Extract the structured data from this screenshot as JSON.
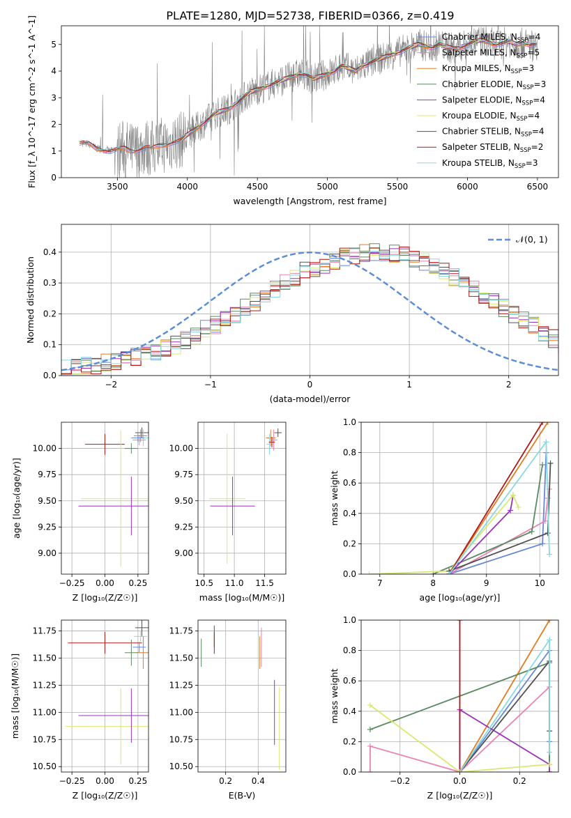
{
  "page_title": "PLATE=1280, MJD=52738, FIBERID=0366, z=0.419",
  "colors": {
    "chabrier_miles": "#6688d8",
    "salpeter_miles": "#e882b4",
    "kroupa_miles": "#e07c20",
    "chabrier_elodie": "#5a8a60",
    "salpeter_elodie": "#9933bb",
    "kroupa_elodie": "#d8e870",
    "chabrier_stelib": "#505050",
    "salpeter_stelib": "#b01818",
    "kroupa_stelib": "#88d8e0",
    "data": "#808080",
    "normal": "#5b8ed6"
  },
  "chart_data": [
    {
      "type": "line",
      "id": "spectrum",
      "xlabel": "wavelength [Angstrom, rest frame]",
      "ylabel": "Flux [f_λ 10^-17 erg cm^-2 s^-1 A^-1]",
      "xlim": [
        3100,
        6650
      ],
      "ylim": [
        0,
        5.7
      ],
      "xticks": [
        "3500",
        "4000",
        "4500",
        "5000",
        "5500",
        "6000",
        "6500"
      ],
      "yticks": [
        "0",
        "1",
        "2",
        "3",
        "4",
        "5"
      ],
      "model_x": [
        3250,
        3300,
        3350,
        3400,
        3450,
        3500,
        3550,
        3600,
        3650,
        3700,
        3750,
        3800,
        3850,
        3900,
        3950,
        4000,
        4050,
        4100,
        4150,
        4200,
        4250,
        4300,
        4350,
        4400,
        4450,
        4500,
        4550,
        4600,
        4650,
        4700,
        4750,
        4800,
        4850,
        4900,
        4950,
        5000,
        5050,
        5100,
        5150,
        5200,
        5250,
        5300,
        5350,
        5400,
        5450,
        5500,
        5550,
        5600,
        5650,
        5700,
        5750,
        5800,
        5850,
        5900,
        5950,
        6000,
        6050,
        6100,
        6150,
        6200,
        6250,
        6300,
        6350,
        6400,
        6450,
        6500
      ],
      "model_y": [
        1.3,
        1.25,
        1.1,
        1.05,
        1.0,
        1.05,
        1.1,
        1.0,
        1.05,
        1.15,
        1.1,
        1.2,
        1.25,
        1.35,
        1.4,
        1.6,
        1.8,
        2.0,
        2.2,
        2.4,
        2.5,
        2.6,
        2.8,
        3.0,
        3.2,
        3.3,
        3.4,
        3.5,
        3.6,
        3.7,
        3.8,
        3.9,
        3.85,
        3.7,
        3.8,
        3.9,
        4.0,
        4.2,
        4.1,
        4.0,
        4.2,
        4.3,
        4.4,
        4.5,
        4.6,
        4.7,
        4.8,
        4.9,
        5.0,
        4.95,
        4.9,
        5.0,
        4.9,
        4.85,
        4.9,
        5.0,
        5.1,
        5.15,
        5.1,
        5.0,
        5.05,
        5.1,
        5.0,
        5.05,
        5.0,
        5.0
      ],
      "legend_position": "upper right",
      "legend": [
        {
          "label": "Chabrier MILES, N",
          "sub": "SSP",
          "value": "=4",
          "color_key": "chabrier_miles"
        },
        {
          "label": "Salpeter MILES, N",
          "sub": "SSP",
          "value": "=5",
          "color_key": "salpeter_miles"
        },
        {
          "label": "Kroupa MILES, N",
          "sub": "SSP",
          "value": "=3",
          "color_key": "kroupa_miles"
        },
        {
          "label": "Chabrier ELODIE, N",
          "sub": "SSP",
          "value": "=3",
          "color_key": "chabrier_elodie"
        },
        {
          "label": "Salpeter ELODIE, N",
          "sub": "SSP",
          "value": "=4",
          "color_key": "salpeter_elodie"
        },
        {
          "label": "Kroupa ELODIE, N",
          "sub": "SSP",
          "value": "=4",
          "color_key": "kroupa_elodie"
        },
        {
          "label": "Chabrier STELIB, N",
          "sub": "SSP",
          "value": "=4",
          "color_key": "chabrier_stelib"
        },
        {
          "label": "Salpeter STELIB, N",
          "sub": "SSP",
          "value": "=2",
          "color_key": "salpeter_stelib"
        },
        {
          "label": "Kroupa STELIB, N",
          "sub": "SSP",
          "value": "=3",
          "color_key": "kroupa_stelib"
        }
      ]
    },
    {
      "type": "step",
      "id": "residuals",
      "xlabel": "(data-model)/error",
      "ylabel": "Normed distribution",
      "xlim": [
        -2.5,
        2.5
      ],
      "ylim": [
        0,
        0.49
      ],
      "xticks": [
        "−2",
        "−1",
        "0",
        "1",
        "2"
      ],
      "yticks": [
        "0.0",
        "0.1",
        "0.2",
        "0.3",
        "0.4"
      ],
      "legend_label": "𝒩(0, 1)",
      "legend_position": "upper right",
      "bin_width": 0.1,
      "bin_start": -2.5,
      "hist_base": [
        0.02,
        0.025,
        0.03,
        0.035,
        0.04,
        0.045,
        0.05,
        0.06,
        0.07,
        0.08,
        0.09,
        0.1,
        0.115,
        0.13,
        0.15,
        0.165,
        0.18,
        0.2,
        0.22,
        0.24,
        0.26,
        0.28,
        0.3,
        0.32,
        0.34,
        0.35,
        0.36,
        0.375,
        0.385,
        0.39,
        0.395,
        0.4,
        0.4,
        0.395,
        0.39,
        0.38,
        0.37,
        0.355,
        0.34,
        0.32,
        0.3,
        0.28,
        0.26,
        0.24,
        0.22,
        0.2,
        0.18,
        0.16,
        0.14,
        0.12,
        0.1,
        0.085,
        0.07,
        0.06,
        0.05,
        0.045,
        0.04,
        0.035,
        0.03,
        0.025,
        0.02,
        0.02,
        0.02,
        0.02,
        0.02,
        0.02,
        0.02,
        0.02,
        0.02,
        0.02,
        0.02,
        0.02,
        0.02,
        0.02,
        0.02,
        0.02,
        0.02,
        0.02,
        0.02,
        0.02,
        0.02
      ]
    },
    {
      "type": "errorbar",
      "id": "age-vs-Z",
      "xlabel": "Z [log₁₀(Z/Z☉)]",
      "ylabel": "age  [log₁₀(age/yr)]",
      "xlim": [
        -0.33,
        0.33
      ],
      "ylim": [
        8.8,
        10.25
      ],
      "xticks": [
        "−0.25",
        "0.00",
        "0.25"
      ],
      "yticks": [
        "9.00",
        "9.25",
        "9.50",
        "9.75",
        "10.00"
      ],
      "points": [
        {
          "x": 0.0,
          "y": 10.04,
          "xerr": 0.15,
          "yerr": 0.1,
          "color_key": "salpeter_stelib"
        },
        {
          "x": 0.28,
          "y": 10.15,
          "xerr": 0.05,
          "yerr": 0.05,
          "color_key": "chabrier_stelib"
        },
        {
          "x": 0.29,
          "y": 10.1,
          "xerr": 0.05,
          "yerr": 0.08,
          "color_key": "kroupa_stelib"
        },
        {
          "x": 0.27,
          "y": 10.12,
          "xerr": 0.05,
          "yerr": 0.06,
          "color_key": "kroupa_miles"
        },
        {
          "x": 0.26,
          "y": 10.08,
          "xerr": 0.05,
          "yerr": 0.05,
          "color_key": "salpeter_miles"
        },
        {
          "x": 0.25,
          "y": 10.1,
          "xerr": 0.05,
          "yerr": 0.04,
          "color_key": "chabrier_miles"
        },
        {
          "x": 0.2,
          "y": 10.0,
          "xerr": 0.05,
          "yerr": 0.05,
          "color_key": "chabrier_elodie"
        },
        {
          "x": 0.12,
          "y": 9.52,
          "xerr": 0.3,
          "yerr": 0.65,
          "color_key": "kroupa_elodie"
        },
        {
          "x": 0.2,
          "y": 9.45,
          "xerr": 0.4,
          "yerr": 0.28,
          "color_key": "salpeter_elodie"
        }
      ]
    },
    {
      "type": "errorbar",
      "id": "age-vs-mass",
      "xlabel": "mass [log₁₀(M/M☉)]",
      "xlim": [
        10.4,
        11.85
      ],
      "ylim": [
        8.8,
        10.25
      ],
      "xticks": [
        "10.5",
        "11.0",
        "11.5"
      ],
      "yticks": [
        "9.00",
        "9.25",
        "9.50",
        "9.75",
        "10.00"
      ],
      "points": [
        {
          "x": 11.72,
          "y": 10.15,
          "xerr": 0.06,
          "yerr": 0.04,
          "color_key": "chabrier_stelib"
        },
        {
          "x": 11.6,
          "y": 10.1,
          "xerr": 0.08,
          "yerr": 0.08,
          "color_key": "kroupa_miles"
        },
        {
          "x": 11.65,
          "y": 10.08,
          "xerr": 0.06,
          "yerr": 0.1,
          "color_key": "salpeter_miles"
        },
        {
          "x": 11.58,
          "y": 10.04,
          "xerr": 0.05,
          "yerr": 0.1,
          "color_key": "kroupa_stelib"
        },
        {
          "x": 11.62,
          "y": 10.06,
          "xerr": 0.05,
          "yerr": 0.05,
          "color_key": "salpeter_stelib"
        },
        {
          "x": 10.88,
          "y": 9.52,
          "xerr": 0.3,
          "yerr": 0.62,
          "color_key": "kroupa_elodie"
        },
        {
          "x": 10.97,
          "y": 9.45,
          "xerr": 0.37,
          "yerr": 0.28,
          "color_key": "salpeter_elodie"
        }
      ]
    },
    {
      "type": "line",
      "id": "massweight-vs-age",
      "xlabel": "age  [log₁₀(age/yr)]",
      "ylabel": "mass weight",
      "xlim": [
        6.65,
        10.35
      ],
      "ylim": [
        0,
        1
      ],
      "xticks": [
        "7",
        "8",
        "9",
        "10"
      ],
      "yticks": [
        "0.0",
        "0.2",
        "0.4",
        "0.6",
        "0.8",
        "1.0"
      ],
      "series": [
        {
          "color_key": "chabrier_miles",
          "x": [
            8.3,
            10.05,
            10.12
          ],
          "y": [
            0.0,
            0.2,
            0.8
          ]
        },
        {
          "color_key": "salpeter_miles",
          "x": [
            8.3,
            10.1,
            10.15,
            10.18
          ],
          "y": [
            0.0,
            0.35,
            0.5,
            0.56
          ]
        },
        {
          "color_key": "kroupa_miles",
          "x": [
            8.3,
            10.15
          ],
          "y": [
            0.0,
            1.0
          ]
        },
        {
          "color_key": "chabrier_elodie",
          "x": [
            8.0,
            9.85,
            10.05
          ],
          "y": [
            0.0,
            0.28,
            0.72
          ]
        },
        {
          "color_key": "salpeter_elodie",
          "x": [
            8.3,
            9.45,
            9.5
          ],
          "y": [
            0.0,
            0.42,
            0.52
          ]
        },
        {
          "color_key": "kroupa_elodie",
          "x": [
            6.8,
            8.3,
            9.5,
            9.6
          ],
          "y": [
            0.0,
            0.02,
            0.52,
            0.44
          ]
        },
        {
          "color_key": "chabrier_stelib",
          "x": [
            8.3,
            10.15,
            10.2
          ],
          "y": [
            0.02,
            0.27,
            0.73
          ]
        },
        {
          "color_key": "salpeter_stelib",
          "x": [
            8.3,
            10.05
          ],
          "y": [
            0.0,
            1.0
          ]
        },
        {
          "color_key": "kroupa_stelib",
          "x": [
            8.3,
            10.12,
            10.18
          ],
          "y": [
            0.0,
            0.87,
            0.13
          ]
        }
      ]
    },
    {
      "type": "errorbar",
      "id": "mass-vs-Z",
      "xlabel": "Z [log₁₀(Z/Z☉)]",
      "ylabel": "mass [log₁₀(M/M☉)]",
      "xlim": [
        -0.33,
        0.33
      ],
      "ylim": [
        10.45,
        11.85
      ],
      "xticks": [
        "−0.25",
        "0.00",
        "0.25"
      ],
      "yticks": [
        "10.50",
        "10.75",
        "11.00",
        "11.25",
        "11.50",
        "11.75"
      ],
      "points": [
        {
          "x": 0.0,
          "y": 11.64,
          "xerr": 0.28,
          "yerr": 0.1,
          "color_key": "salpeter_stelib"
        },
        {
          "x": 0.28,
          "y": 11.78,
          "xerr": 0.05,
          "yerr": 0.08,
          "color_key": "chabrier_stelib"
        },
        {
          "x": 0.27,
          "y": 11.7,
          "xerr": 0.05,
          "yerr": 0.05,
          "color_key": "kroupa_stelib"
        },
        {
          "x": 0.29,
          "y": 11.55,
          "xerr": 0.05,
          "yerr": 0.15,
          "color_key": "kroupa_miles"
        },
        {
          "x": 0.26,
          "y": 11.6,
          "xerr": 0.05,
          "yerr": 0.05,
          "color_key": "chabrier_miles"
        },
        {
          "x": 0.2,
          "y": 11.55,
          "xerr": 0.05,
          "yerr": 0.12,
          "color_key": "chabrier_elodie"
        },
        {
          "x": 0.12,
          "y": 10.87,
          "xerr": 0.42,
          "yerr": 0.35,
          "color_key": "kroupa_elodie"
        },
        {
          "x": 0.2,
          "y": 10.97,
          "xerr": 0.4,
          "yerr": 0.25,
          "color_key": "salpeter_elodie"
        }
      ]
    },
    {
      "type": "errorbar",
      "id": "mass-vs-EBV",
      "xlabel": "E(B-V)",
      "xlim": [
        0.03,
        0.57
      ],
      "ylim": [
        10.45,
        11.85
      ],
      "xticks": [
        "0.2",
        "0.4"
      ],
      "yticks": [
        "10.50",
        "10.75",
        "11.00",
        "11.25",
        "11.50",
        "11.75"
      ],
      "points": [
        {
          "x": 0.05,
          "y": 11.55,
          "xerr": 0.0,
          "yerr": 0.13,
          "color_key": "chabrier_elodie"
        },
        {
          "x": 0.13,
          "y": 11.7,
          "xerr": 0.0,
          "yerr": 0.1,
          "color_key": "chabrier_stelib"
        },
        {
          "x": 0.13,
          "y": 11.64,
          "xerr": 0.0,
          "yerr": 0.1,
          "color_key": "salpeter_stelib"
        },
        {
          "x": 0.42,
          "y": 11.6,
          "xerr": 0.0,
          "yerr": 0.18,
          "color_key": "salpeter_miles"
        },
        {
          "x": 0.41,
          "y": 11.55,
          "xerr": 0.0,
          "yerr": 0.15,
          "color_key": "kroupa_miles"
        },
        {
          "x": 0.5,
          "y": 11.0,
          "xerr": 0.0,
          "yerr": 0.3,
          "color_key": "salpeter_elodie"
        },
        {
          "x": 0.53,
          "y": 10.85,
          "xerr": 0.0,
          "yerr": 0.38,
          "color_key": "kroupa_elodie"
        }
      ]
    },
    {
      "type": "line",
      "id": "massweight-vs-Z",
      "xlabel": "Z [log₁₀(Z/Z☉)]",
      "ylabel": "mass weight",
      "xlim": [
        -0.33,
        0.33
      ],
      "ylim": [
        0,
        1
      ],
      "xticks": [
        "−0.2",
        "0.0",
        "0.2"
      ],
      "yticks": [
        "0.0",
        "0.2",
        "0.4",
        "0.6",
        "0.8",
        "1.0"
      ],
      "series": [
        {
          "color_key": "chabrier_miles",
          "x": [
            0.0,
            0.3,
            0.3
          ],
          "y": [
            0.0,
            0.8,
            0.2
          ]
        },
        {
          "color_key": "salpeter_miles",
          "x": [
            -0.3,
            -0.3,
            0.0,
            0.3,
            0.3
          ],
          "y": [
            0.0,
            0.17,
            0.0,
            0.56,
            0.0
          ]
        },
        {
          "color_key": "kroupa_miles",
          "x": [
            0.0,
            0.3
          ],
          "y": [
            0.0,
            1.0
          ]
        },
        {
          "color_key": "chabrier_elodie",
          "x": [
            -0.3,
            0.3,
            0.3
          ],
          "y": [
            0.28,
            0.72,
            0.0
          ]
        },
        {
          "color_key": "salpeter_elodie",
          "x": [
            0.0,
            0.0,
            0.3,
            0.3
          ],
          "y": [
            0.0,
            0.41,
            0.05,
            0.0
          ]
        },
        {
          "color_key": "kroupa_elodie",
          "x": [
            -0.3,
            0.0,
            0.3
          ],
          "y": [
            0.44,
            0.0,
            0.05
          ]
        },
        {
          "color_key": "chabrier_stelib",
          "x": [
            0.0,
            0.3,
            0.3
          ],
          "y": [
            0.0,
            0.73,
            0.27
          ]
        },
        {
          "color_key": "salpeter_stelib",
          "x": [
            0.0,
            0.0
          ],
          "y": [
            0.0,
            1.0
          ]
        },
        {
          "color_key": "kroupa_stelib",
          "x": [
            0.0,
            0.3,
            0.3
          ],
          "y": [
            0.0,
            0.87,
            0.13
          ]
        }
      ]
    }
  ]
}
